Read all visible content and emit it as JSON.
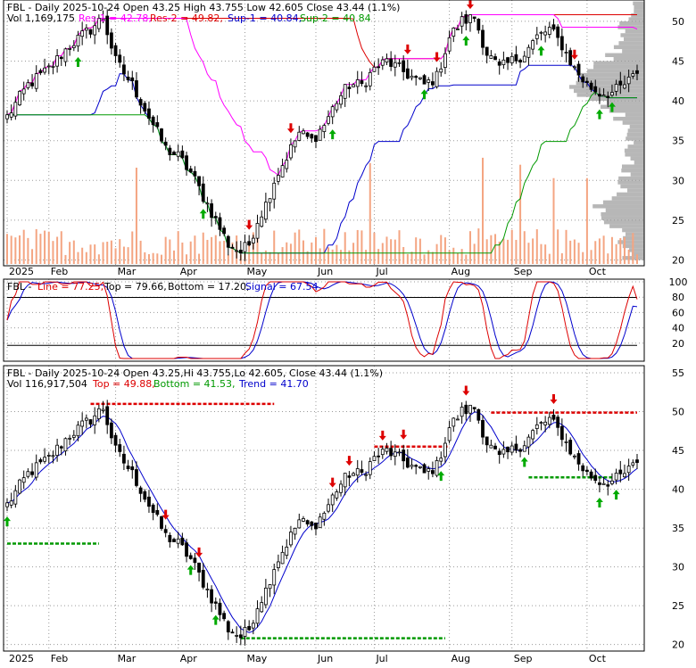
{
  "colors": {
    "up": "#000000",
    "down": "#000000",
    "volume": "#f4a582",
    "res1": "#ff00ff",
    "res2": "#dd0000",
    "sup1": "#0000cc",
    "sup2": "#009900",
    "stoch_line": "#dd0000",
    "stoch_signal": "#0000cc",
    "trend": "#0000cc",
    "top_line": "#dd0000",
    "bottom_line": "#009900",
    "profile": "#aaaaaa",
    "arrow_up": "#00aa00",
    "arrow_down": "#dd0000"
  },
  "panel1": {
    "title": "FBL - Daily 2025-10-24 Open 43.25   High 43.755   Low 42.605   Close 43.44 (1.1%)",
    "vol_label": "Vol 1,169,175",
    "res1_label": "Res-1 = 42.78,",
    "res2_label": "Res-2 = 49.82,",
    "sup1_label": "Sup-1 = 40.84,",
    "sup2_label": "Sup-2 = 40.84"
  },
  "panel2": {
    "title": "FBL - ",
    "line_label": "Line = 77.25,",
    "top_label": "Top = 79.66,",
    "bottom_label": "Bottom = 17.20,",
    "signal_label": "Signal = 67.54"
  },
  "panel3": {
    "title": "FBL - Daily 2025-10-24 Open 43.25,Hi 43.755,Lo 42.605, Close 43.44 (1.1%)",
    "vol_label": "Vol 116,917,504",
    "top_label": "Top = 49.88,",
    "bottom_label": "Bottom = 41.53,",
    "trend_label": "Trend = 41.70"
  },
  "chart_data": [
    {
      "type": "candlestick",
      "panel": "price-support-resistance",
      "x_labels": [
        "2025",
        "Feb",
        "Mar",
        "Apr",
        "May",
        "Jun",
        "Jul",
        "Aug",
        "Sep",
        "Oct"
      ],
      "y_ticks": [
        20,
        25,
        30,
        35,
        40,
        45,
        50
      ],
      "ylim": [
        19.5,
        52
      ],
      "close_anchors": [
        [
          0,
          38
        ],
        [
          5,
          42
        ],
        [
          10,
          44
        ],
        [
          15,
          47
        ],
        [
          20,
          49
        ],
        [
          23,
          50.5
        ],
        [
          26,
          45
        ],
        [
          30,
          42
        ],
        [
          34,
          38
        ],
        [
          38,
          34
        ],
        [
          41,
          33
        ],
        [
          44,
          31
        ],
        [
          47,
          28
        ],
        [
          50,
          25
        ],
        [
          53,
          22
        ],
        [
          56,
          21
        ],
        [
          58,
          22
        ],
        [
          60,
          25
        ],
        [
          62,
          27
        ],
        [
          64,
          30
        ],
        [
          67,
          33
        ],
        [
          70,
          36
        ],
        [
          73,
          35
        ],
        [
          76,
          37
        ],
        [
          79,
          40
        ],
        [
          82,
          42
        ],
        [
          85,
          42
        ],
        [
          88,
          44
        ],
        [
          91,
          45
        ],
        [
          94,
          44
        ],
        [
          97,
          43
        ],
        [
          100,
          42
        ],
        [
          103,
          43
        ],
        [
          106,
          48
        ],
        [
          109,
          50
        ],
        [
          112,
          50.5
        ],
        [
          115,
          46
        ],
        [
          118,
          44
        ],
        [
          121,
          45
        ],
        [
          124,
          46
        ],
        [
          127,
          48
        ],
        [
          130,
          49
        ],
        [
          133,
          47
        ],
        [
          136,
          44
        ],
        [
          139,
          42
        ],
        [
          142,
          41
        ],
        [
          145,
          41
        ],
        [
          148,
          42
        ],
        [
          151,
          43.4
        ]
      ],
      "volume_scale": 1169175,
      "res1": 42.78,
      "res2": 49.82,
      "sup1": 40.84,
      "sup2": 40.84,
      "up_arrows": [
        17,
        47,
        78,
        100,
        110,
        128,
        142,
        145
      ],
      "down_arrows": [
        58,
        68,
        96,
        103,
        111,
        136
      ]
    },
    {
      "type": "line",
      "panel": "stochastic",
      "y_ticks": [
        20,
        40,
        60,
        80,
        100
      ],
      "ylim": [
        0,
        100
      ],
      "line": 77.25,
      "top": 79.66,
      "bottom": 17.2,
      "signal": 67.54
    },
    {
      "type": "candlestick",
      "panel": "price-trend",
      "x_labels": [
        "2025",
        "Feb",
        "Mar",
        "Apr",
        "May",
        "Jun",
        "Jul",
        "Aug",
        "Sep",
        "Oct"
      ],
      "y_ticks": [
        20,
        25,
        30,
        35,
        40,
        45,
        50,
        55
      ],
      "ylim": [
        19.5,
        55
      ],
      "top": 49.88,
      "bottom": 41.53,
      "trend": 41.7,
      "up_arrows": [
        0,
        44,
        50,
        104,
        124,
        142,
        146
      ],
      "down_arrows": [
        38,
        46,
        78,
        82,
        90,
        95,
        110,
        131
      ]
    }
  ],
  "x_axis": {
    "labels": [
      {
        "text": "2025",
        "idx": 0
      },
      {
        "text": "Feb",
        "idx": 10
      },
      {
        "text": "Mar",
        "idx": 26
      },
      {
        "text": "Apr",
        "idx": 41
      },
      {
        "text": "May",
        "idx": 57
      },
      {
        "text": "Jun",
        "idx": 74
      },
      {
        "text": "Jul",
        "idx": 88
      },
      {
        "text": "Aug",
        "idx": 106
      },
      {
        "text": "Sep",
        "idx": 121
      },
      {
        "text": "Oct",
        "idx": 139
      }
    ]
  }
}
